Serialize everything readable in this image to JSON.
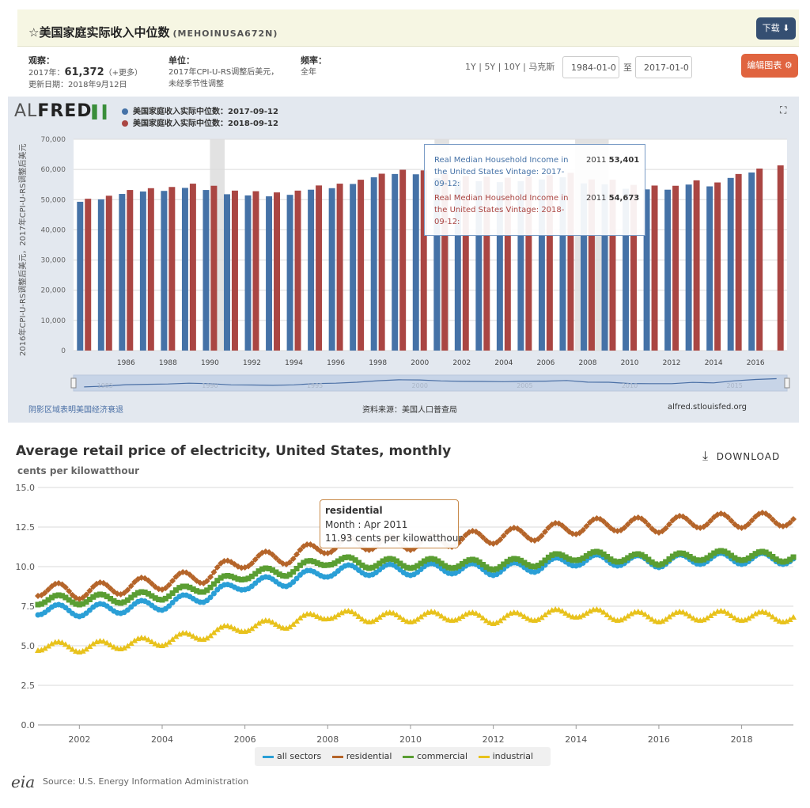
{
  "fred": {
    "star": "☆",
    "title": "美国家庭实际收入中位数",
    "series_id": "(MEHOINUSA672N)",
    "download_label": "下载",
    "download_icon": "⬇",
    "obs_label": "观察：",
    "obs_year": "2017年：",
    "obs_value": "61,372",
    "obs_more": "（+更多）",
    "updated": "更新日期：2018年9月12日",
    "unit_label": "单位：",
    "unit_line1": "2017年CPI-U-RS调整后美元，",
    "unit_line2": "未经季节性调整",
    "freq_label": "频率：",
    "freq_value": "全年",
    "range_1y": "1Y",
    "range_5y": "5Y",
    "range_10y": "10Y",
    "range_max": "马克斯",
    "sep": "|",
    "date_from": "1984-01-0",
    "date_to_label": "至",
    "date_to": "2017-01-0",
    "edit_label": "编辑图表",
    "edit_icon": "⚙",
    "logo_al": "AL",
    "logo_fred": "FRED",
    "expand_icon": "⛶",
    "legend": [
      {
        "label": "美国家庭收入实际中位数：2017-09-12",
        "color": "#4572a7"
      },
      {
        "label": "美国家庭收入实际中位数：2018-09-12",
        "color": "#aa4643"
      }
    ],
    "ylabel": "2016年CPI-U-RS调整后美元，2017年CPI-U-RS调整后美元",
    "recession_note": "阴影区域表明美国经济衰退",
    "source": "资料来源：美国人口普查局",
    "site": "alfred.stlouisfed.org",
    "navigator_labels": [
      "1985",
      "1990",
      "1995",
      "2000",
      "2005",
      "2010",
      "2015"
    ],
    "tooltip": {
      "line1_text": "Real Median Household Income in the United States Vintage: 2017-09-12:",
      "line1_year": "2011",
      "line1_value": "53,401",
      "line2_text": "Real Median Household Income in the United States Vintage: 2018-09-12:",
      "line2_year": "2011",
      "line2_value": "54,673"
    }
  },
  "eia": {
    "title": "Average retail price of electricity, United States, monthly",
    "unit": "cents per kilowatthour",
    "download_icon": "⤓",
    "download_label": "DOWNLOAD",
    "legend": [
      {
        "label": "all sectors",
        "color": "#2a9fd6"
      },
      {
        "label": "residential",
        "color": "#b5652a"
      },
      {
        "label": "commercial",
        "color": "#5a9e32"
      },
      {
        "label": "industrial",
        "color": "#e8c21c"
      }
    ],
    "logo": "eia",
    "source": "Source: U.S. Energy Information Administration",
    "tooltip": {
      "series": "residential",
      "month": "Month : Apr 2011",
      "value": "11.93 cents per kilowatthour"
    }
  },
  "chart_data": [
    {
      "type": "bar",
      "title": "美国家庭实际收入中位数",
      "ylabel": "2016年CPI-U-RS调整后美元，2017年CPI-U-RS调整后美元",
      "ylim": [
        0,
        70000
      ],
      "yticks": [
        0,
        10000,
        20000,
        30000,
        40000,
        50000,
        60000,
        70000
      ],
      "ytick_labels": [
        "0",
        "10,000",
        "20,000",
        "30,000",
        "40,000",
        "50,000",
        "60,000",
        "70,000"
      ],
      "xticks": [
        1986,
        1988,
        1990,
        1992,
        1994,
        1996,
        1998,
        2000,
        2002,
        2004,
        2006,
        2008,
        2010,
        2012,
        2014,
        2016
      ],
      "recessions": [
        [
          1990.5,
          1991.2
        ],
        [
          2001.2,
          2001.9
        ],
        [
          2007.9,
          2009.5
        ]
      ],
      "categories": [
        1984,
        1985,
        1986,
        1987,
        1988,
        1989,
        1990,
        1991,
        1992,
        1993,
        1994,
        1995,
        1996,
        1997,
        1998,
        1999,
        2000,
        2001,
        2002,
        2003,
        2004,
        2005,
        2006,
        2007,
        2008,
        2009,
        2010,
        2011,
        2012,
        2013,
        2014,
        2015,
        2016,
        2017
      ],
      "series": [
        {
          "name": "美国家庭收入实际中位数：2017-09-12",
          "color": "#4572a7",
          "values": [
            49300,
            50100,
            51900,
            52700,
            52900,
            53900,
            53200,
            51800,
            51400,
            51100,
            51600,
            53300,
            53800,
            55200,
            57400,
            58500,
            58400,
            57100,
            56300,
            56100,
            55800,
            56100,
            56700,
            57400,
            55400,
            55100,
            53600,
            53401,
            53300,
            55000,
            54400,
            57200,
            59000,
            null
          ]
        },
        {
          "name": "美国家庭收入实际中位数：2018-09-12",
          "color": "#aa4643",
          "values": [
            50300,
            51300,
            53200,
            53800,
            54200,
            55300,
            54600,
            53000,
            52800,
            52400,
            53000,
            54700,
            55300,
            56600,
            58600,
            59900,
            59700,
            58400,
            57800,
            57600,
            57300,
            57700,
            58100,
            58900,
            56700,
            56600,
            54900,
            54673,
            54600,
            56400,
            55700,
            58500,
            60300,
            61372
          ]
        }
      ]
    },
    {
      "type": "line",
      "title": "Average retail price of electricity, United States, monthly",
      "ylabel": "cents per kilowatthour",
      "ylim": [
        0,
        15
      ],
      "yticks": [
        0,
        2.5,
        5,
        7.5,
        10,
        12.5,
        15
      ],
      "ytick_labels": [
        "0.0",
        "2.5",
        "5.0",
        "7.5",
        "10.0",
        "12.5",
        "15.0"
      ],
      "xlim": [
        2001,
        2019.25
      ],
      "xticks": [
        2002,
        2004,
        2006,
        2008,
        2010,
        2012,
        2014,
        2016,
        2018
      ],
      "series": [
        {
          "name": "all sectors",
          "color": "#2a9fd6",
          "marker": "circle",
          "annual": [
            [
              2001,
              7.3
            ],
            [
              2002,
              7.2
            ],
            [
              2003,
              7.4
            ],
            [
              2004,
              7.6
            ],
            [
              2005,
              8.1
            ],
            [
              2006,
              8.9
            ],
            [
              2007,
              9.1
            ],
            [
              2008,
              9.7
            ],
            [
              2009,
              9.8
            ],
            [
              2010,
              9.8
            ],
            [
              2011,
              9.9
            ],
            [
              2012,
              9.8
            ],
            [
              2013,
              10.0
            ],
            [
              2014,
              10.4
            ],
            [
              2015,
              10.4
            ],
            [
              2016,
              10.3
            ],
            [
              2017,
              10.5
            ],
            [
              2018,
              10.5
            ],
            [
              2019,
              10.5
            ]
          ],
          "amp": 0.35
        },
        {
          "name": "residential",
          "color": "#b5652a",
          "marker": "diamond",
          "annual": [
            [
              2001,
              8.6
            ],
            [
              2002,
              8.4
            ],
            [
              2003,
              8.7
            ],
            [
              2004,
              9.0
            ],
            [
              2005,
              9.4
            ],
            [
              2006,
              10.4
            ],
            [
              2007,
              10.6
            ],
            [
              2008,
              11.3
            ],
            [
              2009,
              11.5
            ],
            [
              2010,
              11.5
            ],
            [
              2011,
              11.7
            ],
            [
              2012,
              11.9
            ],
            [
              2013,
              12.1
            ],
            [
              2014,
              12.5
            ],
            [
              2015,
              12.7
            ],
            [
              2016,
              12.6
            ],
            [
              2017,
              12.9
            ],
            [
              2018,
              12.9
            ],
            [
              2019,
              13.0
            ]
          ],
          "amp": 0.45
        },
        {
          "name": "commercial",
          "color": "#5a9e32",
          "marker": "square",
          "annual": [
            [
              2001,
              7.9
            ],
            [
              2002,
              7.9
            ],
            [
              2003,
              8.0
            ],
            [
              2004,
              8.2
            ],
            [
              2005,
              8.7
            ],
            [
              2006,
              9.5
            ],
            [
              2007,
              9.7
            ],
            [
              2008,
              10.4
            ],
            [
              2009,
              10.2
            ],
            [
              2010,
              10.2
            ],
            [
              2011,
              10.2
            ],
            [
              2012,
              10.1
            ],
            [
              2013,
              10.3
            ],
            [
              2014,
              10.7
            ],
            [
              2015,
              10.6
            ],
            [
              2016,
              10.4
            ],
            [
              2017,
              10.7
            ],
            [
              2018,
              10.7
            ],
            [
              2019,
              10.6
            ]
          ],
          "amp": 0.3
        },
        {
          "name": "industrial",
          "color": "#e8c21c",
          "marker": "triangle",
          "annual": [
            [
              2001,
              5.0
            ],
            [
              2002,
              4.9
            ],
            [
              2003,
              5.1
            ],
            [
              2004,
              5.3
            ],
            [
              2005,
              5.7
            ],
            [
              2006,
              6.2
            ],
            [
              2007,
              6.4
            ],
            [
              2008,
              7.0
            ],
            [
              2009,
              6.8
            ],
            [
              2010,
              6.8
            ],
            [
              2011,
              6.9
            ],
            [
              2012,
              6.7
            ],
            [
              2013,
              6.9
            ],
            [
              2014,
              7.1
            ],
            [
              2015,
              6.9
            ],
            [
              2016,
              6.8
            ],
            [
              2017,
              6.9
            ],
            [
              2018,
              6.9
            ],
            [
              2019,
              6.8
            ]
          ],
          "amp": 0.3
        }
      ]
    }
  ]
}
